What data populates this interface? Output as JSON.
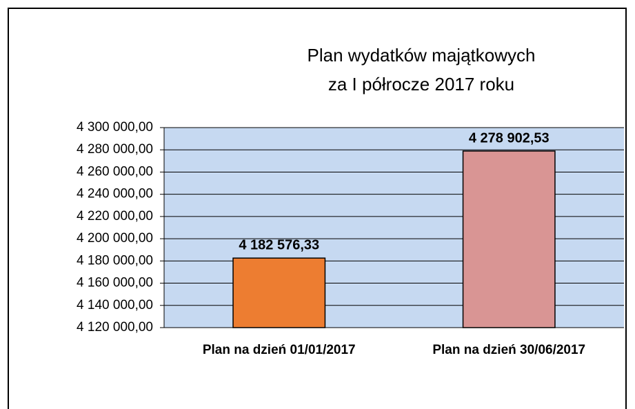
{
  "chart_data": {
    "type": "bar",
    "title": [
      "Plan wydatków majątkowych",
      "za I półrocze 2017 roku"
    ],
    "categories": [
      "Plan na dzień 01/01/2017",
      "Plan na dzień 30/06/2017"
    ],
    "values": [
      4182576.33,
      4278902.53
    ],
    "value_labels": [
      "4 182 576,33",
      "4 278 902,53"
    ],
    "colors": [
      "#ed7d31",
      "#d99594"
    ],
    "ylim": [
      4120000,
      4300000
    ],
    "yticks": [
      {
        "value": 4120000,
        "label": "4 120 000,00"
      },
      {
        "value": 4140000,
        "label": "4 140 000,00"
      },
      {
        "value": 4160000,
        "label": "4 160 000,00"
      },
      {
        "value": 4180000,
        "label": "4 180 000,00"
      },
      {
        "value": 4200000,
        "label": "4 200 000,00"
      },
      {
        "value": 4220000,
        "label": "4 220 000,00"
      },
      {
        "value": 4240000,
        "label": "4 240 000,00"
      },
      {
        "value": 4260000,
        "label": "4 260 000,00"
      },
      {
        "value": 4280000,
        "label": "4 280 000,00"
      },
      {
        "value": 4300000,
        "label": "4 300 000,00"
      }
    ],
    "grid": true
  }
}
